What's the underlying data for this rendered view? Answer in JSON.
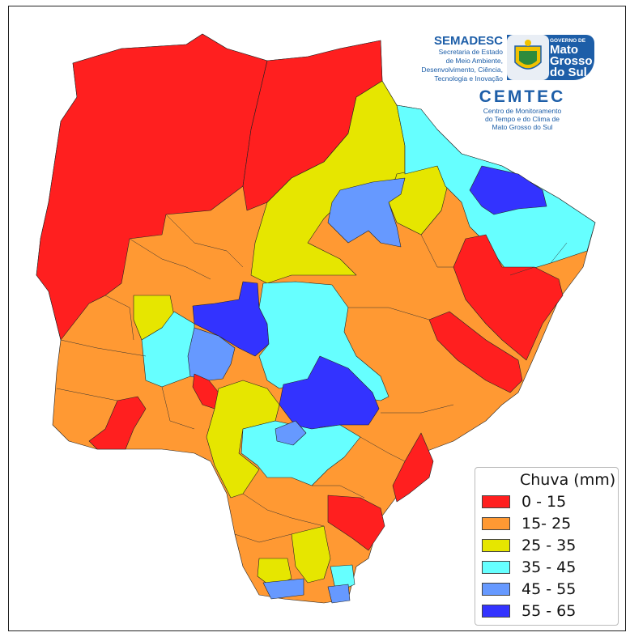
{
  "legend": {
    "title": "Chuva (mm)",
    "items": [
      {
        "label": "0 - 15",
        "color": "#ff1f1f"
      },
      {
        "label": "15- 25",
        "color": "#ff9933"
      },
      {
        "label": "25 - 35",
        "color": "#e6e600"
      },
      {
        "label": "35 - 45",
        "color": "#66ffff"
      },
      {
        "label": "45 - 55",
        "color": "#6699ff"
      },
      {
        "label": "55 - 65",
        "color": "#3333ff"
      }
    ]
  },
  "logos": {
    "semadesc_name": "SEMADESC",
    "semadesc_line1": "Secretaria de Estado",
    "semadesc_line2": "de Meio Ambiente,",
    "semadesc_line3": "Desenvolvimento, Ciência,",
    "semadesc_line4": "Tecnologia e Inovação",
    "gov_line1": "GOVERNO DE",
    "gov_line2": "Mato",
    "gov_line3": "Grosso",
    "gov_line4": "do Sul",
    "cemtec_name": "CEMTEC",
    "cemtec_line1": "Centro de Monitoramento",
    "cemtec_line2": "do Tempo e do Clima de",
    "cemtec_line3": "Mato Grosso do Sul"
  },
  "map_regions": [
    {
      "name": "nw-red",
      "class": "0 - 15"
    },
    {
      "name": "north-red",
      "class": "0 - 15"
    },
    {
      "name": "west-orange",
      "class": "15- 25"
    },
    {
      "name": "central-orange",
      "class": "15- 25"
    },
    {
      "name": "east-orange",
      "class": "15- 25"
    },
    {
      "name": "north-yellow",
      "class": "25 - 35"
    },
    {
      "name": "south-yellow",
      "class": "25 - 35"
    },
    {
      "name": "ne-cyan",
      "class": "35 - 45"
    },
    {
      "name": "center-cyan",
      "class": "35 - 45"
    },
    {
      "name": "light-blue-north",
      "class": "45 - 55"
    },
    {
      "name": "blue-center",
      "class": "55 - 65"
    },
    {
      "name": "blue-ne",
      "class": "55 - 65"
    }
  ]
}
